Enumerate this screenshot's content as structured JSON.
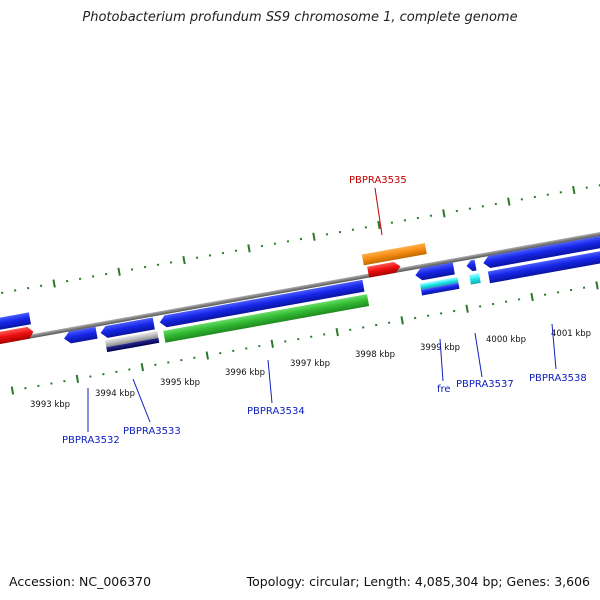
{
  "title": "Photobacterium profundum SS9 chromosome 1, complete genome",
  "footer": {
    "accession": "Accession: NC_006370",
    "topology": "Topology: circular; Length: 4,085,304 bp; Genes: 3,606"
  },
  "colors": {
    "backbone": "#7a7a7a",
    "ticks": "#2a7a2a",
    "label_blue": "#1020c0",
    "label_red": "#c00000"
  },
  "ticks": [
    {
      "label": "3993 kbp"
    },
    {
      "label": "3994 kbp"
    },
    {
      "label": "3995 kbp"
    },
    {
      "label": "3996 kbp"
    },
    {
      "label": "3997 kbp"
    },
    {
      "label": "3998 kbp"
    },
    {
      "label": "3999 kbp"
    },
    {
      "label": "4000 kbp"
    },
    {
      "label": "4001 kbp"
    }
  ],
  "genes": [
    {
      "name": "PBPRA3532"
    },
    {
      "name": "PBPRA3533"
    },
    {
      "name": "PBPRA3534"
    },
    {
      "name": "PBPRA3535"
    },
    {
      "name": "fre"
    },
    {
      "name": "PBPRA3537"
    },
    {
      "name": "PBPRA3538"
    }
  ]
}
